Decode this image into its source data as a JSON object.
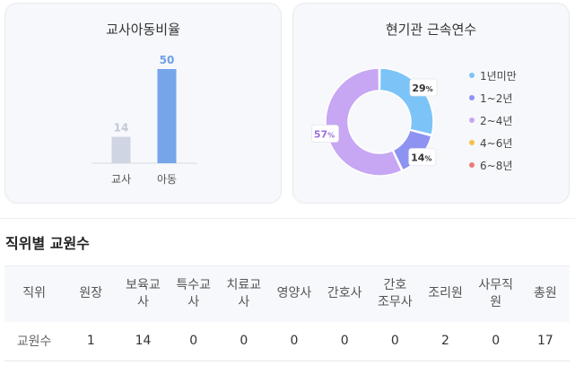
{
  "teacher_child_ratio": {
    "title": "교사아동비율",
    "colors": {
      "teacher": "#cfd5e2",
      "child": "#76a5ea",
      "teacher_label": "#c3c9d6",
      "child_label": "#6e9fe6"
    },
    "bars": [
      {
        "label": "교사",
        "value": 14
      },
      {
        "label": "아동",
        "value": 50
      }
    ]
  },
  "tenure": {
    "title": "현기관 근속연수",
    "items": [
      {
        "label": "1년미만",
        "value": 29,
        "color": "#7cc4f7"
      },
      {
        "label": "1~2년",
        "value": 14,
        "color": "#8e93f2"
      },
      {
        "label": "2~4년",
        "value": 57,
        "color": "#c7a6f4"
      },
      {
        "label": "4~6년",
        "value": 0,
        "color": "#f5c04a"
      },
      {
        "label": "6~8년",
        "value": 0,
        "color": "#f07a7a"
      }
    ],
    "percent_suffix": "%"
  },
  "staff_table": {
    "title": "직위별 교원수",
    "header_label": "직위",
    "row_label": "교원수",
    "columns": [
      "원장",
      "보육교\n사",
      "특수교\n사",
      "치료교\n사",
      "영양사",
      "간호사",
      "간호\n조무사",
      "조리원",
      "사무직\n원",
      "총원"
    ],
    "values": [
      "1",
      "14",
      "0",
      "0",
      "0",
      "0",
      "0",
      "2",
      "0",
      "17"
    ]
  }
}
